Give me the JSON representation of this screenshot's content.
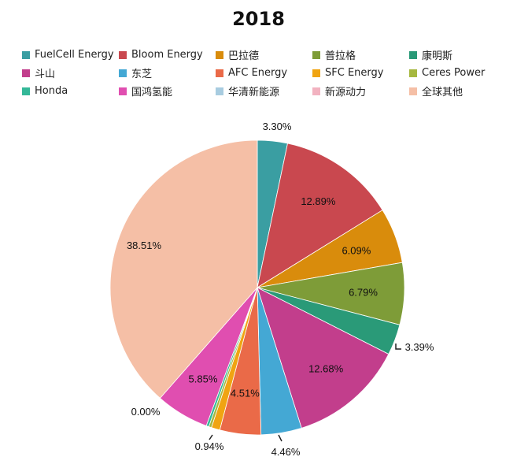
{
  "chart_data": {
    "type": "pie",
    "title": "2018",
    "legend_position": "top",
    "start_angle": "top, clockwise",
    "slices": [
      {
        "name": "FuelCell Energy",
        "value": 3.3,
        "label": "3.30%",
        "color": "#3a9ea2"
      },
      {
        "name": "Bloom Energy",
        "value": 12.89,
        "label": "12.89%",
        "color": "#c9484f"
      },
      {
        "name": "巴拉德",
        "value": 6.09,
        "label": "6.09%",
        "color": "#d98c0c"
      },
      {
        "name": "普拉格",
        "value": 6.79,
        "label": "6.79%",
        "color": "#7e9c38"
      },
      {
        "name": "康明斯",
        "value": 3.39,
        "label": "3.39%",
        "color": "#2a9a78"
      },
      {
        "name": "斗山",
        "value": 12.68,
        "label": "12.68%",
        "color": "#c23e8c"
      },
      {
        "name": "东芝",
        "value": 4.46,
        "label": "4.46%",
        "color": "#44a8d4"
      },
      {
        "name": "AFC Energy",
        "value": 4.51,
        "label": "4.51%",
        "color": "#ea6a48"
      },
      {
        "name": "SFC Energy",
        "value": 0.94,
        "label": "0.94%",
        "color": "#f0a412"
      },
      {
        "name": "Ceres Power",
        "value": 0.3,
        "label": "",
        "color": "#a6b840"
      },
      {
        "name": "Honda",
        "value": 0.29,
        "label": "",
        "color": "#34b898"
      },
      {
        "name": "国鸿氢能",
        "value": 5.85,
        "label": "5.85%",
        "color": "#e04eb0"
      },
      {
        "name": "华清新能源",
        "value": 0.0,
        "label": "0.00%",
        "color": "#a8cce0"
      },
      {
        "name": "新源动力",
        "value": 0.0,
        "label": "",
        "color": "#f2b2c0"
      },
      {
        "name": "全球其他",
        "value": 38.51,
        "label": "38.51%",
        "color": "#f5bfa6"
      }
    ]
  }
}
